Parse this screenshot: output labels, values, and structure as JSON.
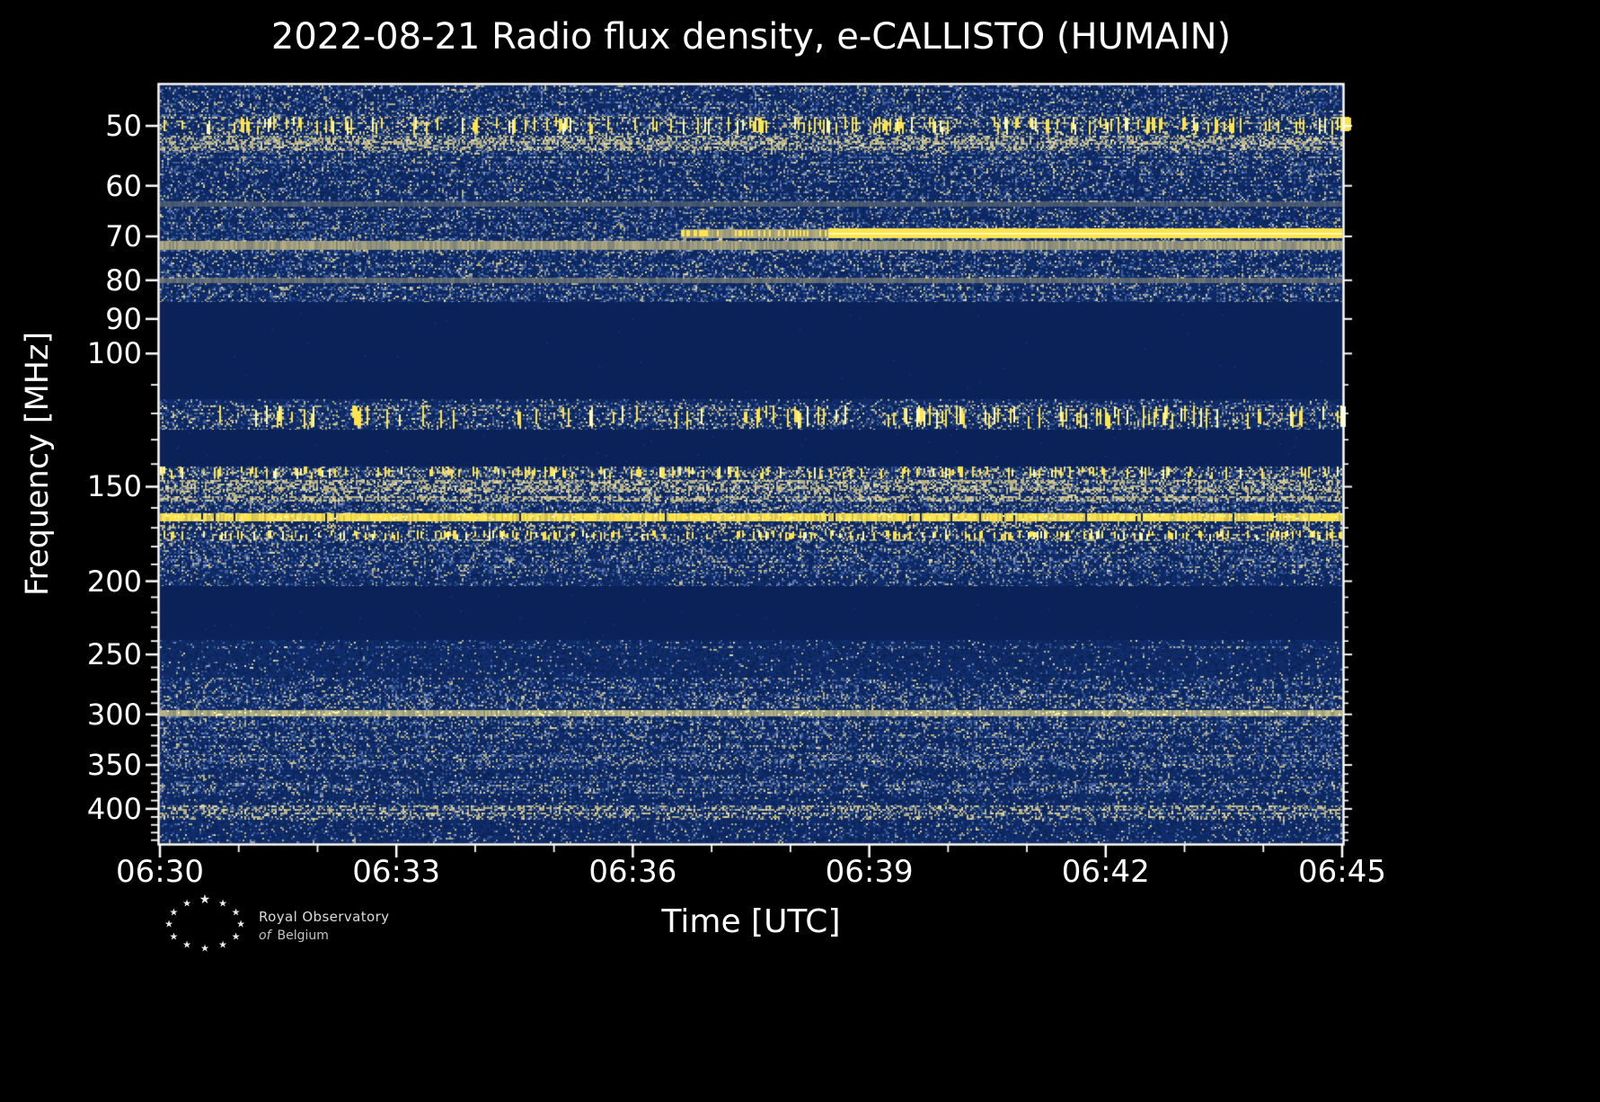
{
  "figure": {
    "title": "2022-08-21 Radio flux density, e-CALLISTO (HUMAIN)",
    "xlabel": "Time [UTC]",
    "ylabel": "Frequency [MHz]",
    "date": "2022-08-21",
    "network": "e-CALLISTO",
    "station": "HUMAIN"
  },
  "logo": {
    "star": "★",
    "line1": "Royal Observatory",
    "line2_italic": "of",
    "line2": "Belgium"
  },
  "chart_data": {
    "type": "heatmap",
    "subtype": "radio-spectrogram",
    "title": "2022-08-21 Radio flux density, e-CALLISTO (HUMAIN)",
    "xlabel": "Time [UTC]",
    "ylabel": "Frequency [MHz]",
    "legend": "none",
    "grid": false,
    "x_axis": {
      "start_utc": "06:30",
      "end_utc": "06:45",
      "major_ticks": [
        "06:30",
        "06:33",
        "06:36",
        "06:39",
        "06:42",
        "06:45"
      ],
      "minor_tick_interval_min": 1
    },
    "y_axis": {
      "scale": "log",
      "top_mhz": 44.2,
      "bottom_mhz": 444,
      "major_ticks": [
        50,
        60,
        70,
        80,
        90,
        100,
        150,
        200,
        250,
        300,
        350,
        400
      ],
      "minor_tick_step_mhz": 10
    },
    "colors": {
      "base": "#0e2a64",
      "blank": "#0a2258",
      "blue": "#3b5c99",
      "blue_light": "#7b90ba",
      "tan": "#b8b183",
      "tan_light": "#ded7a8",
      "yellow": "#ffe44d",
      "yellow_bright": "#fffbb0",
      "frame": "#ffffff"
    },
    "bands": [
      {
        "f0": 44.2,
        "f1": 48.6,
        "kind": "noise",
        "d": 0.55
      },
      {
        "f0": 48.6,
        "f1": 51.5,
        "kind": "dashes",
        "d": 0.85,
        "wmax": 8,
        "note": "strong intermittent bursty emission near 50 MHz"
      },
      {
        "f0": 51.5,
        "f1": 54.0,
        "kind": "tan_noise",
        "d": 0.7
      },
      {
        "f0": 54.0,
        "f1": 56.5,
        "kind": "noise",
        "d": 0.65
      },
      {
        "f0": 56.5,
        "f1": 60.0,
        "kind": "noise",
        "d": 0.5
      },
      {
        "f0": 60.0,
        "f1": 63.0,
        "kind": "noise",
        "d": 0.45
      },
      {
        "f0": 63.0,
        "f1": 63.9,
        "kind": "line",
        "color": "#b8b183",
        "alpha": 0.35
      },
      {
        "f0": 63.9,
        "f1": 67.0,
        "kind": "noise",
        "d": 0.5
      },
      {
        "f0": 67.0,
        "f1": 68.5,
        "kind": "noise",
        "d": 0.6
      },
      {
        "f0": 68.5,
        "f1": 70.3,
        "kind": "burst",
        "segments": [
          {
            "from_frac": 0.0,
            "to_frac": 0.44,
            "level": "quiet"
          },
          {
            "from_frac": 0.44,
            "to_frac": 0.565,
            "level": "enhanced"
          },
          {
            "from_frac": 0.565,
            "to_frac": 1.0,
            "level": "bright"
          }
        ],
        "note": "~70 MHz line appears near 06:36:30 and turns bright yellow after ~06:38:30"
      },
      {
        "f0": 70.3,
        "f1": 71.0,
        "kind": "noise",
        "d": 0.5
      },
      {
        "f0": 71.0,
        "f1": 73.0,
        "kind": "line",
        "color": "#b8b183",
        "alpha": 0.85,
        "note": "persistent tan line ~72 MHz"
      },
      {
        "f0": 73.0,
        "f1": 79.5,
        "kind": "noise",
        "d": 0.6
      },
      {
        "f0": 79.5,
        "f1": 80.8,
        "kind": "line",
        "color": "#b8b183",
        "alpha": 0.5
      },
      {
        "f0": 80.8,
        "f1": 85.5,
        "kind": "noise",
        "d": 0.5
      },
      {
        "f0": 85.5,
        "f1": 115.0,
        "kind": "blank",
        "note": "no data / filtered band"
      },
      {
        "f0": 115.0,
        "f1": 117.0,
        "kind": "noise",
        "d": 0.4
      },
      {
        "f0": 117.0,
        "f1": 126.0,
        "kind": "dashes",
        "d": 0.6,
        "ramp": true,
        "wmax": 5,
        "note": "speckled band ~120 MHz, intensifies with time"
      },
      {
        "f0": 126.0,
        "f1": 141.0,
        "kind": "blank"
      },
      {
        "f0": 141.0,
        "f1": 147.0,
        "kind": "dashes",
        "d": 0.7,
        "wmax": 4
      },
      {
        "f0": 147.0,
        "f1": 157.0,
        "kind": "tan_noise",
        "d": 0.75
      },
      {
        "f0": 157.0,
        "f1": 162.5,
        "kind": "noise",
        "d": 0.55
      },
      {
        "f0": 162.5,
        "f1": 166.5,
        "kind": "line",
        "color": "#ffe44d",
        "alpha": 1,
        "speckle": true,
        "gaps": 0.04,
        "note": "bright continuous yellow line ~165 MHz"
      },
      {
        "f0": 166.5,
        "f1": 171.5,
        "kind": "tan_noise",
        "d": 0.6
      },
      {
        "f0": 171.5,
        "f1": 177.0,
        "kind": "dashes",
        "d": 0.9,
        "wmax": 3,
        "note": "dense yellow speckle ~175 MHz"
      },
      {
        "f0": 177.0,
        "f1": 196.0,
        "kind": "noise",
        "d": 0.55
      },
      {
        "f0": 196.0,
        "f1": 203.0,
        "kind": "noise",
        "d": 0.45
      },
      {
        "f0": 203.0,
        "f1": 239.0,
        "kind": "blank"
      },
      {
        "f0": 239.0,
        "f1": 243.5,
        "kind": "noise",
        "d": 0.12
      },
      {
        "f0": 243.5,
        "f1": 246.0,
        "kind": "noise",
        "d": 0.45
      },
      {
        "f0": 246.0,
        "f1": 268.0,
        "kind": "noise",
        "d": 0.12
      },
      {
        "f0": 268.0,
        "f1": 282.0,
        "kind": "noise",
        "d": 0.5
      },
      {
        "f0": 282.0,
        "f1": 296.0,
        "kind": "noise",
        "d": 0.55
      },
      {
        "f0": 296.0,
        "f1": 301.5,
        "kind": "line",
        "color": "#e3d78e",
        "alpha": 0.75,
        "speckle": true,
        "note": "tan-yellow line ~300 MHz"
      },
      {
        "f0": 301.5,
        "f1": 340.0,
        "kind": "noise",
        "d": 0.55
      },
      {
        "f0": 340.0,
        "f1": 353.0,
        "kind": "noise",
        "d": 0.6
      },
      {
        "f0": 353.0,
        "f1": 368.0,
        "kind": "noise",
        "d": 0.35
      },
      {
        "f0": 368.0,
        "f1": 382.0,
        "kind": "noise",
        "d": 0.55
      },
      {
        "f0": 382.0,
        "f1": 396.0,
        "kind": "noise",
        "d": 0.2
      },
      {
        "f0": 396.0,
        "f1": 413.0,
        "kind": "tan_noise",
        "d": 0.55
      },
      {
        "f0": 413.0,
        "f1": 444.0,
        "kind": "noise",
        "d": 0.25
      }
    ]
  }
}
